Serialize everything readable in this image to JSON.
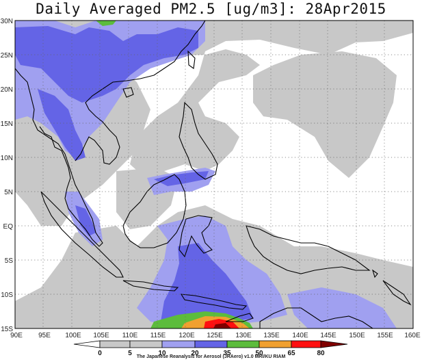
{
  "title": "Daily Averaged PM2.5 [ug/m3]: 28Apr2015",
  "credit": "The Japanese Reanalysis for Aerosol (JRAero) v1.0 MRI/KU RIAM",
  "lon_labels": [
    "90E",
    "95E",
    "100E",
    "105E",
    "110E",
    "115E",
    "120E",
    "125E",
    "130E",
    "135E",
    "140E",
    "145E",
    "150E",
    "155E",
    "160E"
  ],
  "lat_labels": [
    "30N",
    "25N",
    "20N",
    "15N",
    "10N",
    "5N",
    "EQ",
    "5S",
    "10S",
    "15S"
  ],
  "colorbar": {
    "ticks": [
      "0",
      "5",
      "10",
      "20",
      "35",
      "50",
      "65",
      "80"
    ],
    "colors": [
      "#ffffff",
      "#c8c8c8",
      "#a0a0f0",
      "#6464e6",
      "#5cbc3c",
      "#f0a030",
      "#ff1010",
      "#800000"
    ]
  }
}
